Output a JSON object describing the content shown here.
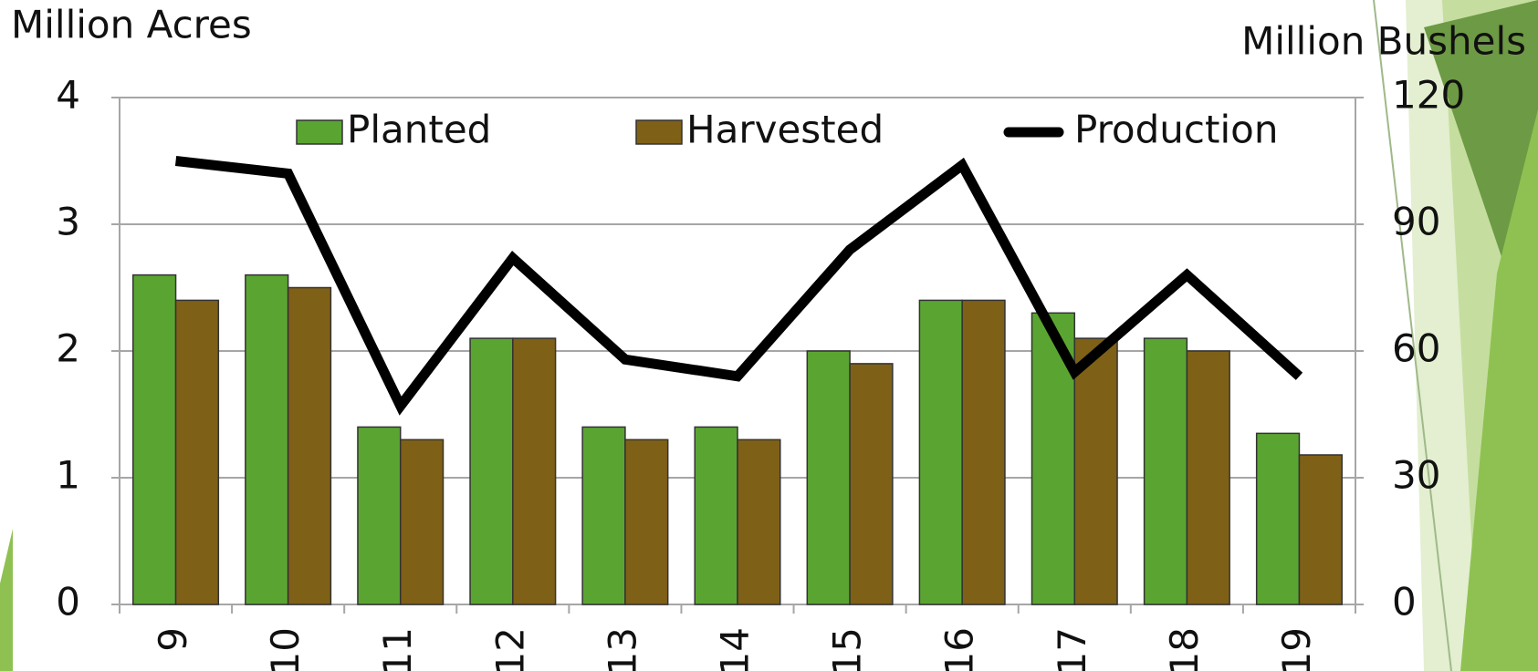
{
  "chart_data": {
    "type": "bar",
    "y_label": "Million Acres",
    "y2_label": "Million Bushels",
    "categories": [
      "9",
      "10",
      "11",
      "12",
      "13",
      "14",
      "15",
      "16",
      "17",
      "18",
      "19"
    ],
    "series": [
      {
        "name": "Planted",
        "color": "#5aa532",
        "values": [
          2.6,
          2.6,
          1.4,
          2.1,
          1.4,
          1.4,
          2.0,
          2.4,
          2.3,
          2.1,
          1.35
        ]
      },
      {
        "name": "Harvested",
        "color": "#7f6017",
        "values": [
          2.4,
          2.5,
          1.3,
          2.1,
          1.3,
          1.3,
          1.9,
          2.4,
          2.1,
          2.0,
          1.18
        ]
      },
      {
        "name": "Production",
        "color": "#000000",
        "axis": "y2",
        "type": "line",
        "values": [
          105,
          102,
          47,
          82,
          58,
          54,
          84,
          104,
          55,
          78,
          54
        ]
      }
    ],
    "ylim": [
      0,
      4
    ],
    "yticks": [
      0,
      1,
      2,
      3,
      4
    ],
    "y2lim": [
      0,
      120
    ],
    "y2ticks": [
      0,
      30,
      60,
      90,
      120
    ],
    "grid": true,
    "legend": "top"
  }
}
